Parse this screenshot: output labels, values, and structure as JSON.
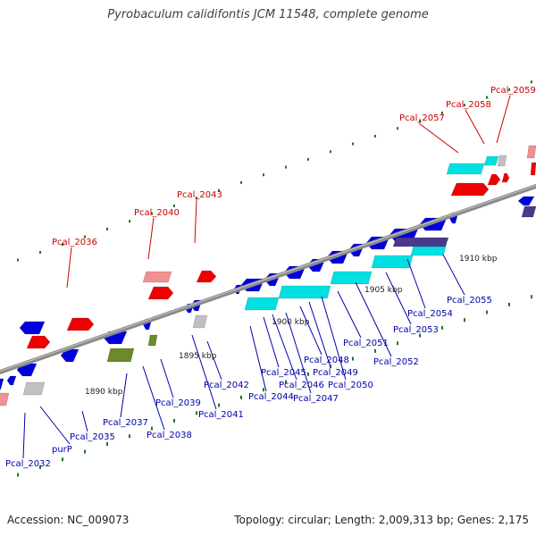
{
  "header": {
    "title": "Pyrobaculum calidifontis JCM 11548, complete genome"
  },
  "footer": {
    "accession": "Accession: NC_009073",
    "summary": "Topology: circular; Length: 2,009,313 bp; Genes: 2,175"
  },
  "colors": {
    "backbone": "#8a8a8a",
    "label_red": "#cc0000",
    "label_blue": "#0000aa",
    "tick_green": "#1a7a1a",
    "forward_cds": "#ee0000",
    "reverse_cds": "#0000dd",
    "rna": "#00e0e0",
    "pseudo_light": "#f09090",
    "other": "#c0c0c0",
    "olive": "#6b8a2a",
    "purple": "#4a3a8a"
  },
  "scale_labels": [
    "1890 kbp",
    "1895 kbp",
    "1900 kbp",
    "1905 kbp",
    "1910 kbp"
  ],
  "top_labels": [
    "Pcal_2036",
    "Pcal_2040",
    "Pcal_2043",
    "Pcal_2057",
    "Pcal_2058",
    "Pcal_2059"
  ],
  "bottom_labels": [
    "Pcal_2032",
    "purP",
    "Pcal_2035",
    "Pcal_2037",
    "Pcal_2038",
    "Pcal_2039",
    "Pcal_2041",
    "Pcal_2042",
    "Pcal_2044",
    "Pcal_2045",
    "Pcal_2046",
    "Pcal_2047",
    "Pcal_2048",
    "Pcal_2049",
    "Pcal_2050",
    "Pcal_2051",
    "Pcal_2052",
    "Pcal_2053",
    "Pcal_2054",
    "Pcal_2055"
  ]
}
